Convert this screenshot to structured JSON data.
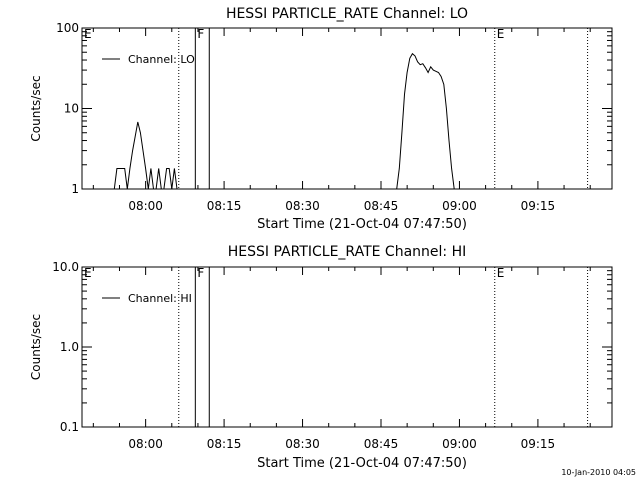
{
  "chart_data": [
    {
      "type": "line",
      "title": "HESSI PARTICLE_RATE Channel: LO",
      "xlabel": "Start Time (21-Oct-04 07:47:50)",
      "ylabel": "Counts/sec",
      "yscale": "log",
      "ylim": [
        1,
        100
      ],
      "xlim": [
        "07:47:50",
        "09:29:10"
      ],
      "y_tick_labels": [
        "1",
        "10",
        "100"
      ],
      "y_tick_values": [
        1,
        10,
        100
      ],
      "x_tick_labels": [
        "08:00",
        "08:15",
        "08:30",
        "08:45",
        "09:00",
        "09:15"
      ],
      "legend": {
        "position": "top-left",
        "entries": [
          "Channel: LO"
        ]
      },
      "markers": [
        {
          "label": "E",
          "time": "07:47:50",
          "style": "dotted"
        },
        {
          "label": "",
          "time": "08:06:20",
          "style": "dotted"
        },
        {
          "label": "F",
          "time": "08:09:30",
          "style": "solid"
        },
        {
          "label": "",
          "time": "08:12:10",
          "style": "solid"
        },
        {
          "label": "E",
          "time": "09:06:45",
          "style": "dotted"
        },
        {
          "label": "",
          "time": "09:24:30",
          "style": "dotted"
        }
      ],
      "series": [
        {
          "name": "Channel: LO",
          "x": [
            "07:54:00",
            "07:54:30",
            "07:55:00",
            "07:55:30",
            "07:56:00",
            "07:56:30",
            "07:57:00",
            "07:57:30",
            "07:58:00",
            "07:58:30",
            "07:59:00",
            "07:59:30",
            "08:00:00",
            "08:00:30",
            "08:01:00",
            "08:01:30",
            "08:02:00",
            "08:02:30",
            "08:03:00",
            "08:03:30",
            "08:04:00",
            "08:04:30",
            "08:05:00",
            "08:05:30",
            "08:06:00",
            "08:06:30",
            "08:48:00",
            "08:48:30",
            "08:49:00",
            "08:49:30",
            "08:50:00",
            "08:50:30",
            "08:51:00",
            "08:51:30",
            "08:52:00",
            "08:52:30",
            "08:53:00",
            "08:53:30",
            "08:54:00",
            "08:54:30",
            "08:55:00",
            "08:55:30",
            "08:56:00",
            "08:56:30",
            "08:57:00",
            "08:57:30",
            "08:58:00",
            "08:58:30",
            "08:59:00",
            "08:59:30"
          ],
          "y": [
            1,
            1.8,
            1.8,
            1.8,
            1.8,
            1,
            1.8,
            3,
            4.5,
            6.8,
            5,
            3,
            1.8,
            1,
            1.8,
            1,
            1,
            1.8,
            1,
            1,
            1.8,
            1.8,
            1,
            1.8,
            1,
            1,
            1,
            1.8,
            5,
            15,
            28,
            42,
            48,
            45,
            38,
            35,
            36,
            32,
            28,
            33,
            30,
            29,
            28,
            25,
            20,
            10,
            4,
            1.8,
            1,
            1
          ]
        }
      ]
    },
    {
      "type": "line",
      "title": "HESSI PARTICLE_RATE Channel: HI",
      "xlabel": "Start Time (21-Oct-04 07:47:50)",
      "ylabel": "Counts/sec",
      "yscale": "log",
      "ylim": [
        0.1,
        10
      ],
      "xlim": [
        "07:47:50",
        "09:29:10"
      ],
      "y_tick_labels": [
        "0.1",
        "1.0",
        "10.0"
      ],
      "y_tick_values": [
        0.1,
        1,
        10
      ],
      "x_tick_labels": [
        "08:00",
        "08:15",
        "08:30",
        "08:45",
        "09:00",
        "09:15"
      ],
      "legend": {
        "position": "top-left",
        "entries": [
          "Channel: HI"
        ]
      },
      "markers": [
        {
          "label": "E",
          "time": "07:47:50",
          "style": "dotted"
        },
        {
          "label": "",
          "time": "08:06:20",
          "style": "dotted"
        },
        {
          "label": "F",
          "time": "08:09:30",
          "style": "solid"
        },
        {
          "label": "",
          "time": "08:12:10",
          "style": "solid"
        },
        {
          "label": "E",
          "time": "09:06:45",
          "style": "dotted"
        },
        {
          "label": "",
          "time": "09:24:30",
          "style": "dotted"
        }
      ],
      "series": [
        {
          "name": "Channel: HI",
          "x": [],
          "y": []
        }
      ]
    }
  ],
  "footer": {
    "date_stamp": "10-Jan-2010 04:05"
  }
}
